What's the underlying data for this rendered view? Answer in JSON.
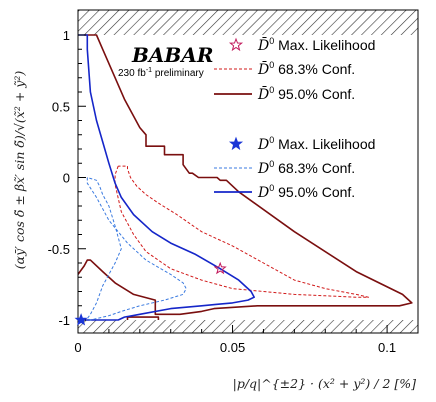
{
  "chart_data": {
    "type": "line",
    "xlabel": "|p/q|^{±2} · (x² + y²) / 2 [%]",
    "ylabel": "(αȳ′ cos δ̃ ± βx̃′ sin δ̃)/√(x̃² + ỹ²)",
    "xlim": [
      0,
      0.11
    ],
    "ylim": [
      -1,
      1
    ],
    "x_ticks": [
      0,
      0.05,
      0.1
    ],
    "x_tick_labels": [
      "0",
      "0.05",
      "0.1"
    ],
    "y_ticks": [
      1,
      0.5,
      0,
      -0.5,
      -1
    ],
    "y_tick_labels": [
      "1",
      "0.5",
      "0",
      "-0.5",
      "-1"
    ],
    "hatched_bands": [
      "y > 1",
      "y < -1"
    ],
    "experiment_logo": "BABAR",
    "luminosity_text": "230 fb",
    "luminosity_sup": "-1",
    "status_text": " preliminary",
    "legend_position": "top-right",
    "legend": [
      {
        "particle": "D̄",
        "sup": "0",
        "text": " Max. Likelihood",
        "marker": "open-star",
        "color": "#c2185b"
      },
      {
        "particle": "D̄",
        "sup": "0",
        "text": " 68.3% Conf.",
        "style": "dashed",
        "color": "#d11a1a"
      },
      {
        "particle": "D̄",
        "sup": "0",
        "text": " 95.0% Conf.",
        "style": "solid",
        "color": "#7a0f0f"
      },
      {
        "particle": "D",
        "sup": "0",
        "text": " Max. Likelihood",
        "marker": "filled-star",
        "color": "#1a35d6"
      },
      {
        "particle": "D",
        "sup": "0",
        "text": " 68.3% Conf.",
        "style": "dashed",
        "color": "#3a7ae0"
      },
      {
        "particle": "D",
        "sup": "0",
        "text": " 95.0% Conf.",
        "style": "solid",
        "color": "#1526c9"
      }
    ],
    "series": [
      {
        "label": "D0bar 95.0% Conf. (outer)",
        "style": "solid",
        "color": "#7a0f0f",
        "points": [
          [
            0.002,
            1.0
          ],
          [
            0.006,
            1.0
          ],
          [
            0.008,
            0.9
          ],
          [
            0.015,
            0.55
          ],
          [
            0.02,
            0.35
          ],
          [
            0.022,
            0.3
          ],
          [
            0.022,
            0.22
          ],
          [
            0.028,
            0.22
          ],
          [
            0.028,
            0.16
          ],
          [
            0.034,
            0.16
          ],
          [
            0.034,
            0.09
          ],
          [
            0.036,
            0.03
          ],
          [
            0.037,
            0.03
          ],
          [
            0.039,
            0.0
          ],
          [
            0.045,
            0.0
          ],
          [
            0.046,
            -0.02
          ],
          [
            0.048,
            -0.02
          ],
          [
            0.052,
            -0.1
          ],
          [
            0.07,
            -0.38
          ],
          [
            0.09,
            -0.66
          ],
          [
            0.105,
            -0.82
          ],
          [
            0.108,
            -0.88
          ],
          [
            0.104,
            -0.9
          ],
          [
            0.08,
            -0.9
          ],
          [
            0.058,
            -0.9
          ],
          [
            0.044,
            -0.92
          ],
          [
            0.04,
            -0.94
          ],
          [
            0.033,
            -0.96
          ],
          [
            0.025,
            -0.96
          ],
          [
            0.025,
            -0.9
          ],
          [
            0.025,
            -0.86
          ],
          [
            0.018,
            -0.82
          ],
          [
            0.012,
            -0.74
          ],
          [
            0.008,
            -0.66
          ],
          [
            0.004,
            -0.58
          ],
          [
            0.003,
            -0.58
          ],
          [
            0.002,
            -0.62
          ],
          [
            0.0,
            -0.68
          ]
        ]
      },
      {
        "label": "D0bar 95.0% Conf. (bottom)",
        "style": "solid",
        "color": "#7a0f0f",
        "points": [
          [
            0.016,
            -1.0
          ],
          [
            0.016,
            -0.98
          ],
          [
            0.026,
            -0.98
          ],
          [
            0.026,
            -1.0
          ]
        ]
      },
      {
        "label": "D0bar 68.3% Conf.",
        "style": "dashed",
        "color": "#d11a1a",
        "points": [
          [
            0.013,
            0.08
          ],
          [
            0.012,
            0.02
          ],
          [
            0.012,
            -0.05
          ],
          [
            0.014,
            -0.24
          ],
          [
            0.018,
            -0.4
          ],
          [
            0.022,
            -0.52
          ],
          [
            0.03,
            -0.64
          ],
          [
            0.04,
            -0.72
          ],
          [
            0.05,
            -0.78
          ],
          [
            0.06,
            -0.8
          ],
          [
            0.07,
            -0.82
          ],
          [
            0.08,
            -0.83
          ],
          [
            0.09,
            -0.84
          ],
          [
            0.094,
            -0.84
          ],
          [
            0.09,
            -0.82
          ],
          [
            0.08,
            -0.78
          ],
          [
            0.07,
            -0.72
          ],
          [
            0.06,
            -0.6
          ],
          [
            0.05,
            -0.48
          ],
          [
            0.04,
            -0.38
          ],
          [
            0.032,
            -0.26
          ],
          [
            0.026,
            -0.18
          ],
          [
            0.022,
            -0.12
          ],
          [
            0.019,
            -0.06
          ],
          [
            0.017,
            0.0
          ],
          [
            0.016,
            0.06
          ],
          [
            0.016,
            0.08
          ],
          [
            0.013,
            0.08
          ]
        ]
      },
      {
        "label": "D0 95.0% Conf.",
        "style": "solid",
        "color": "#1526c9",
        "points": [
          [
            0.0,
            1.0
          ],
          [
            0.003,
            1.0
          ],
          [
            0.003,
            0.9
          ],
          [
            0.004,
            0.6
          ],
          [
            0.006,
            0.4
          ],
          [
            0.008,
            0.25
          ],
          [
            0.01,
            0.1
          ],
          [
            0.012,
            -0.04
          ],
          [
            0.014,
            -0.14
          ],
          [
            0.018,
            -0.26
          ],
          [
            0.024,
            -0.38
          ],
          [
            0.03,
            -0.46
          ],
          [
            0.038,
            -0.54
          ],
          [
            0.046,
            -0.64
          ],
          [
            0.052,
            -0.72
          ],
          [
            0.056,
            -0.8
          ],
          [
            0.057,
            -0.84
          ],
          [
            0.055,
            -0.86
          ],
          [
            0.05,
            -0.88
          ],
          [
            0.045,
            -0.89
          ],
          [
            0.04,
            -0.9
          ],
          [
            0.03,
            -0.92
          ],
          [
            0.02,
            -0.96
          ],
          [
            0.015,
            -0.98
          ],
          [
            0.013,
            -1.0
          ],
          [
            0.0,
            -1.0
          ]
        ]
      },
      {
        "label": "D0 68.3% Conf.",
        "style": "dashed",
        "color": "#3a7ae0",
        "points": [
          [
            0.003,
            0.0
          ],
          [
            0.003,
            -0.04
          ],
          [
            0.006,
            -0.14
          ],
          [
            0.01,
            -0.3
          ],
          [
            0.016,
            -0.46
          ],
          [
            0.022,
            -0.58
          ],
          [
            0.03,
            -0.68
          ],
          [
            0.034,
            -0.74
          ],
          [
            0.035,
            -0.78
          ],
          [
            0.034,
            -0.82
          ],
          [
            0.028,
            -0.86
          ],
          [
            0.02,
            -0.9
          ],
          [
            0.014,
            -0.94
          ],
          [
            0.01,
            -0.97
          ],
          [
            0.006,
            -0.99
          ],
          [
            0.004,
            -1.0
          ],
          [
            0.003,
            -0.99
          ],
          [
            0.004,
            -0.96
          ],
          [
            0.006,
            -0.88
          ],
          [
            0.008,
            -0.76
          ],
          [
            0.012,
            -0.6
          ],
          [
            0.014,
            -0.5
          ],
          [
            0.012,
            -0.34
          ],
          [
            0.01,
            -0.2
          ],
          [
            0.008,
            -0.12
          ],
          [
            0.007,
            -0.06
          ],
          [
            0.006,
            -0.02
          ],
          [
            0.003,
            0.0
          ]
        ]
      }
    ],
    "markers": [
      {
        "label": "D0bar Max. Likelihood",
        "x": 0.046,
        "y": -0.64,
        "shape": "open-star",
        "color": "#c2185b"
      },
      {
        "label": "D0 Max. Likelihood",
        "x": 0.001,
        "y": -1.0,
        "shape": "filled-star",
        "color": "#1a35d6"
      }
    ]
  }
}
